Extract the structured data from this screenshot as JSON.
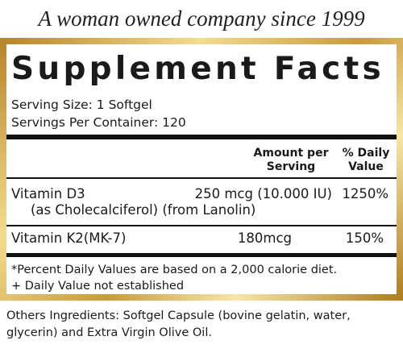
{
  "header": {
    "tagline": "A woman owned company since 1999"
  },
  "facts": {
    "title": "Supplement Facts",
    "serving_size": "Serving Size: 1 Softgel",
    "servings_per_container": "Servings Per Container: 120",
    "columns": {
      "amount": "Amount per Serving",
      "daily_value": "% Daily Value"
    },
    "rows": [
      {
        "name": "Vitamin D3",
        "source": "(as Cholecalciferol) (from Lanolin)",
        "amount": "250 mcg (10.000 IU)",
        "daily_value": "1250%"
      },
      {
        "name": "Vitamin K2(MK-7)",
        "amount": "180mcg",
        "daily_value": "150%"
      }
    ],
    "footnotes": [
      "*Percent Daily Values are based on a 2,000 calorie diet.",
      "+ Daily Value not established"
    ]
  },
  "other_ingredients": "Others Ingredients: Softgel Capsule (bovine gelatin, water, glycerin) and Extra Virgin Olive Oil."
}
